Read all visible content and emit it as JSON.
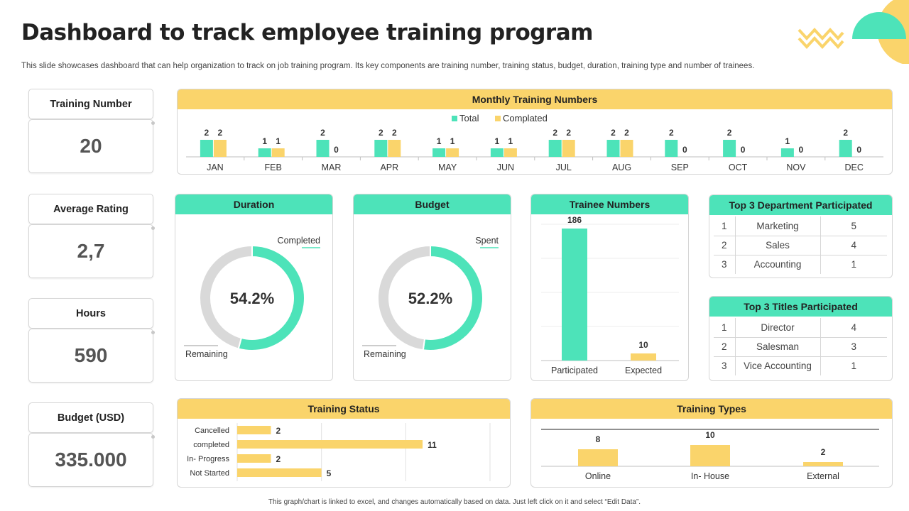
{
  "title": "Dashboard to track employee training program",
  "subtitle": "This slide showcases dashboard that can help organization to track on job training program. Its key components are training number, training status, budget, duration, training type and number of trainees.",
  "footnote": "This graph/chart is linked to excel, and changes automatically based on data. Just left click on it and select “Edit Data”.",
  "colors": {
    "teal": "#4de3b9",
    "yellow": "#fad46b",
    "grey": "#d9d9d9"
  },
  "kpis": [
    {
      "label": "Training Number",
      "value": "20"
    },
    {
      "label": "Average Rating",
      "value": "2,7"
    },
    {
      "label": "Hours",
      "value": "590"
    },
    {
      "label": "Budget (USD)",
      "value": "335.000"
    }
  ],
  "monthly": {
    "title": "Monthly Training Numbers"
  },
  "duration": {
    "title": "Duration",
    "label_a": "Completed",
    "label_b": "Remaining",
    "center": "54.2%"
  },
  "budget": {
    "title": "Budget",
    "label_a": "Spent",
    "label_b": "Remaining",
    "center": "52.2%"
  },
  "trainee": {
    "title": "Trainee Numbers"
  },
  "departments": {
    "title": "Top 3 Department Participated",
    "rows": [
      [
        "1",
        "Marketing",
        "5"
      ],
      [
        "2",
        "Sales",
        "4"
      ],
      [
        "3",
        "Accounting",
        "1"
      ]
    ]
  },
  "titles": {
    "title": "Top 3 Titles Participated",
    "rows": [
      [
        "1",
        "Director",
        "4"
      ],
      [
        "2",
        "Salesman",
        "3"
      ],
      [
        "3",
        "Vice Accounting",
        "1"
      ]
    ]
  },
  "status": {
    "title": "Training Status"
  },
  "types": {
    "title": "Training Types"
  },
  "chart_data": [
    {
      "type": "bar",
      "title": "Monthly Training Numbers",
      "categories": [
        "JAN",
        "FEB",
        "MAR",
        "APR",
        "MAY",
        "JUN",
        "JUL",
        "AUG",
        "SEP",
        "OCT",
        "NOV",
        "DEC"
      ],
      "series": [
        {
          "name": "Total",
          "color": "#4de3b9",
          "values": [
            2,
            1,
            2,
            2,
            1,
            1,
            2,
            2,
            2,
            2,
            1,
            2
          ]
        },
        {
          "name": "Complated",
          "color": "#fad46b",
          "values": [
            2,
            1,
            0,
            2,
            1,
            1,
            2,
            2,
            0,
            0,
            0,
            0
          ]
        }
      ],
      "ylim": [
        0,
        2
      ]
    },
    {
      "type": "pie",
      "title": "Duration",
      "labels": [
        "Completed",
        "Remaining"
      ],
      "values": [
        54.2,
        45.8
      ],
      "colors": [
        "#4de3b9",
        "#d9d9d9"
      ]
    },
    {
      "type": "pie",
      "title": "Budget",
      "labels": [
        "Spent",
        "Remaining"
      ],
      "values": [
        52.2,
        47.8
      ],
      "colors": [
        "#4de3b9",
        "#d9d9d9"
      ]
    },
    {
      "type": "bar",
      "title": "Trainee Numbers",
      "categories": [
        "Participated",
        "Expected"
      ],
      "values": [
        186,
        10
      ],
      "colors": [
        "#4de3b9",
        "#fad46b"
      ],
      "ylim": [
        0,
        200
      ]
    },
    {
      "type": "bar",
      "orientation": "horizontal",
      "title": "Training Status",
      "categories": [
        "Cancelled",
        "completed",
        "In- Progress",
        "Not Started"
      ],
      "values": [
        2,
        11,
        2,
        5
      ],
      "xlim": [
        0,
        15
      ]
    },
    {
      "type": "bar",
      "title": "Training Types",
      "categories": [
        "Online",
        "In- House",
        "External"
      ],
      "values": [
        8,
        10,
        2
      ],
      "ylim": [
        0,
        30
      ]
    }
  ]
}
